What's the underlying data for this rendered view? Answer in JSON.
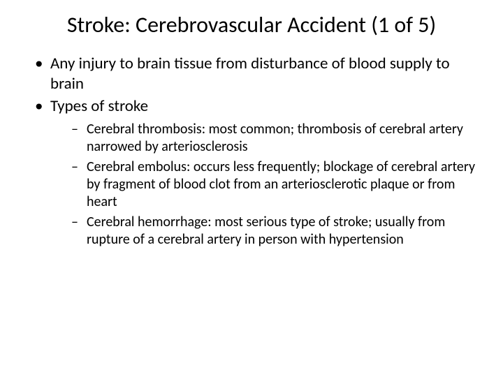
{
  "title": "Stroke: Cerebrovascular Accident (1 of 5)",
  "bullets": {
    "b0": "Any injury to brain tissue from disturbance of blood supply to brain",
    "b1": "Types of stroke",
    "sub": {
      "s0": "Cerebral thrombosis: most common; thrombosis of cerebral artery narrowed by arteriosclerosis",
      "s1": "Cerebral embolus: occurs less frequently; blockage of cerebral artery by fragment of blood clot from an arteriosclerotic plaque or from heart",
      "s2": "Cerebral hemorrhage: most serious type of stroke; usually from rupture of a cerebral artery in person with hypertension"
    }
  },
  "style": {
    "background_color": "#ffffff",
    "text_color": "#000000",
    "title_fontsize": 32,
    "body_fontsize": 23,
    "sub_fontsize": 20,
    "font_family": "Calibri"
  }
}
